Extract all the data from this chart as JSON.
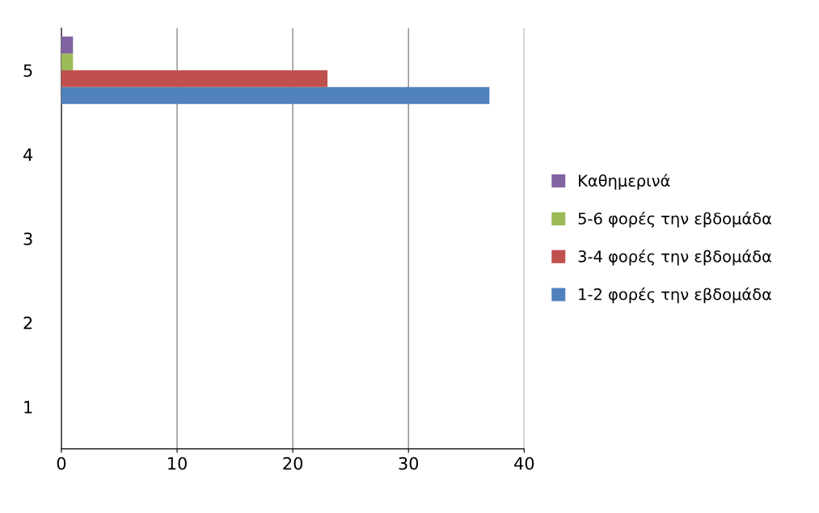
{
  "chart_data": {
    "type": "bar",
    "orientation": "horizontal",
    "categories": [
      "5",
      "4",
      "3",
      "2",
      "1"
    ],
    "series": [
      {
        "name": "1-2 φορές την εβδομάδα",
        "color": "#4f81bd",
        "values": [
          37,
          null,
          null,
          null,
          null
        ]
      },
      {
        "name": "3-4 φορές την εβδομάδα",
        "color": "#c0504d",
        "values": [
          23,
          null,
          null,
          null,
          null
        ]
      },
      {
        "name": "5-6 φορές την εβδομάδα",
        "color": "#9bbb59",
        "values": [
          1,
          null,
          null,
          null,
          null
        ]
      },
      {
        "name": "Καθημερινά",
        "color": "#8064a2",
        "values": [
          1,
          null,
          null,
          null,
          null
        ]
      }
    ],
    "xlim": [
      0,
      40
    ],
    "xticks": [
      0,
      10,
      20,
      30,
      40
    ],
    "grid": "x",
    "legend": "right"
  }
}
